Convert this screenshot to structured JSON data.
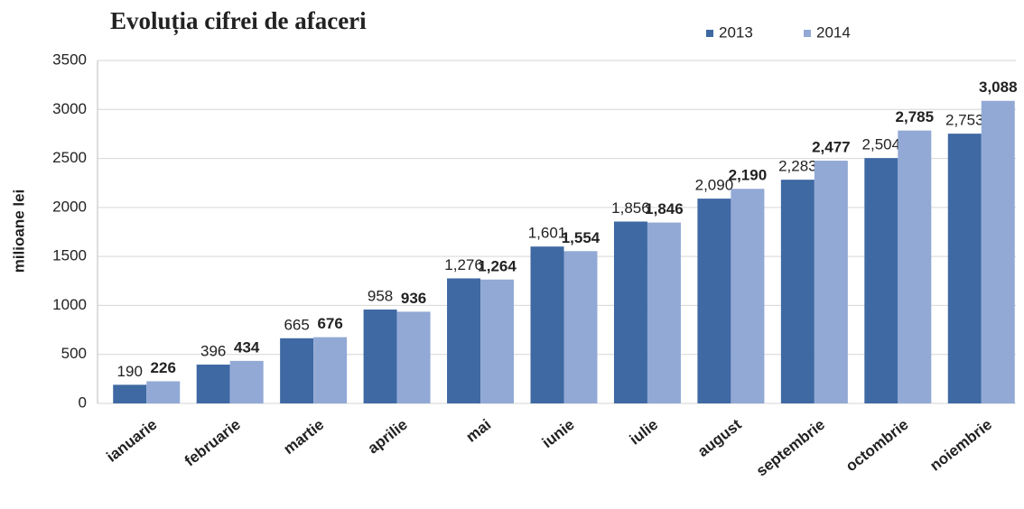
{
  "chart_data": {
    "type": "bar",
    "title": "Evoluția cifrei de afaceri",
    "ylabel": "milioane lei",
    "categories": [
      "ianuarie",
      "februarie",
      "martie",
      "aprilie",
      "mai",
      "iunie",
      "iulie",
      "august",
      "septembrie",
      "octombrie",
      "noiembrie"
    ],
    "series": [
      {
        "name": "2013",
        "color": "#3e69a3",
        "values": [
          190,
          396,
          665,
          958,
          1276,
          1601,
          1856,
          2090,
          2283,
          2504,
          2753
        ],
        "value_labels": [
          "190",
          "396",
          "665",
          "958",
          "1,276",
          "1,601",
          "1,856",
          "2,090",
          "2,283",
          "2,504",
          "2,753"
        ]
      },
      {
        "name": "2014",
        "color": "#92a9d5",
        "values": [
          226,
          434,
          676,
          936,
          1264,
          1554,
          1846,
          2190,
          2477,
          2785,
          3088
        ],
        "value_labels": [
          "226",
          "434",
          "676",
          "936",
          "1,264",
          "1,554",
          "1,846",
          "2,190",
          "2,477",
          "2,785",
          "3,088"
        ]
      }
    ],
    "ylim": [
      0,
      3500
    ],
    "yticks": [
      0,
      500,
      1000,
      1500,
      2000,
      2500,
      3000,
      3500
    ],
    "grid": true,
    "legend": "top-right"
  }
}
